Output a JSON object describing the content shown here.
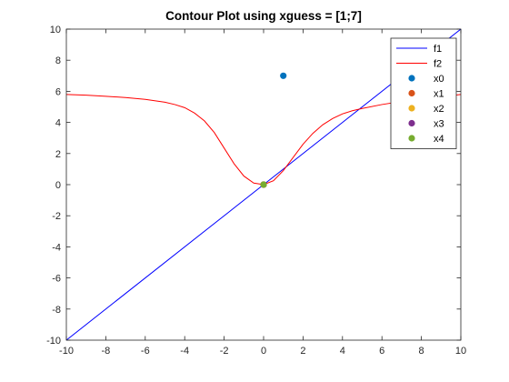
{
  "chart_data": {
    "type": "line",
    "title": "Contour Plot using xguess = [1;7]",
    "xlabel": "",
    "ylabel": "",
    "xlim": [
      -10,
      10
    ],
    "ylim": [
      -10,
      10
    ],
    "xticks": [
      -10,
      -8,
      -6,
      -4,
      -2,
      0,
      2,
      4,
      6,
      8,
      10
    ],
    "yticks": [
      -10,
      -8,
      -6,
      -4,
      -2,
      0,
      2,
      4,
      6,
      8,
      10
    ],
    "grid": false,
    "legend_position": "top-right",
    "series": [
      {
        "name": "f1",
        "kind": "line",
        "color": "#0000ff",
        "x": [
          -10,
          10
        ],
        "y": [
          -10,
          10
        ]
      },
      {
        "name": "f2",
        "kind": "line",
        "color": "#ff0000",
        "x": [
          -10,
          -9,
          -8,
          -7,
          -6,
          -5,
          -4.5,
          -4,
          -3.5,
          -3,
          -2.5,
          -2,
          -1.5,
          -1,
          -0.5,
          0,
          0.5,
          1,
          1.5,
          2,
          2.5,
          3,
          3.5,
          4,
          4.5,
          5,
          6,
          7,
          8,
          9,
          10
        ],
        "y": [
          5.8,
          5.75,
          5.68,
          5.6,
          5.48,
          5.3,
          5.15,
          4.95,
          4.6,
          4.1,
          3.35,
          2.35,
          1.35,
          0.55,
          0.1,
          0,
          0.25,
          0.9,
          1.75,
          2.6,
          3.3,
          3.85,
          4.25,
          4.55,
          4.75,
          4.9,
          5.15,
          5.35,
          5.5,
          5.65,
          5.8
        ]
      },
      {
        "name": "x0",
        "kind": "marker",
        "color": "#0072bd",
        "x": [
          1
        ],
        "y": [
          7
        ]
      },
      {
        "name": "x1",
        "kind": "marker",
        "color": "#d95319",
        "x": [
          0
        ],
        "y": [
          0
        ]
      },
      {
        "name": "x2",
        "kind": "marker",
        "color": "#edb120",
        "x": [
          0
        ],
        "y": [
          0
        ]
      },
      {
        "name": "x3",
        "kind": "marker",
        "color": "#7e2f8e",
        "x": [
          0
        ],
        "y": [
          0
        ]
      },
      {
        "name": "x4",
        "kind": "marker",
        "color": "#77ac30",
        "x": [
          0
        ],
        "y": [
          0
        ]
      }
    ]
  }
}
